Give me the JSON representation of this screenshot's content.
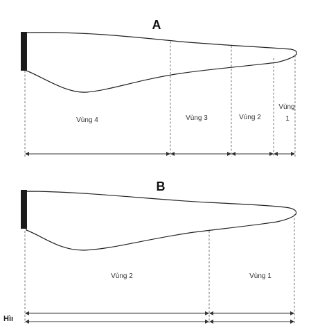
{
  "diagrams": [
    {
      "title": "A",
      "zones": [
        {
          "label_lines": [
            "Vùng 4"
          ]
        },
        {
          "label_lines": [
            "Vùng 3"
          ]
        },
        {
          "label_lines": [
            "Vùng 2"
          ]
        },
        {
          "label_lines": [
            "Vùng",
            "1"
          ]
        }
      ]
    },
    {
      "title": "B",
      "zones": [
        {
          "label_lines": [
            "Vùng 2"
          ]
        },
        {
          "label_lines": [
            "Vùng 1"
          ]
        }
      ]
    }
  ],
  "corner_label": "Hìı",
  "colors": {
    "ink": "#222222",
    "bar": "#1a1a1a",
    "guide": "#666666"
  }
}
